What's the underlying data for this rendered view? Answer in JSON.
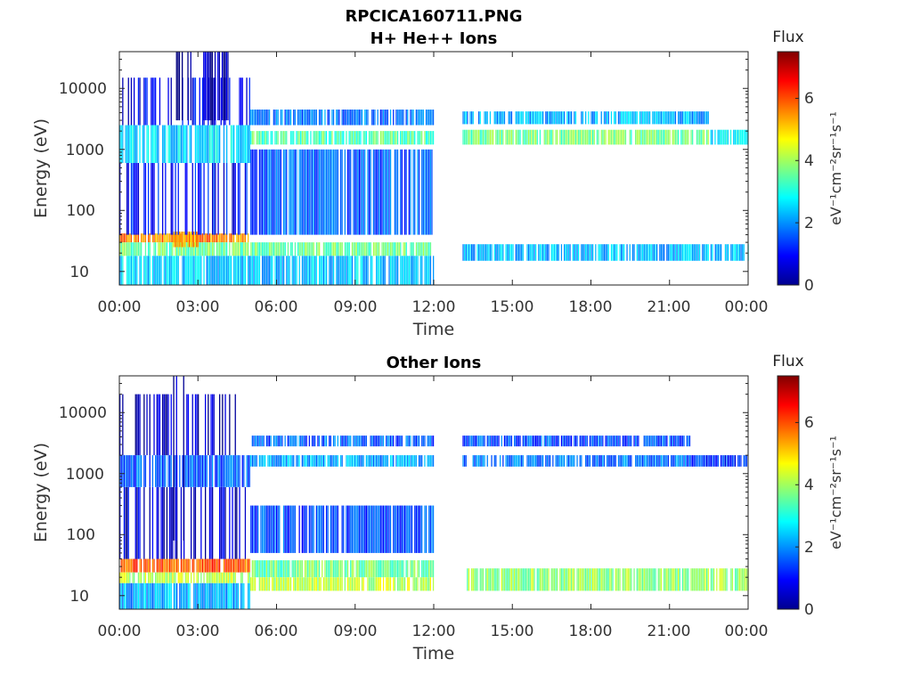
{
  "suptitle": "RPCICA160711.PNG",
  "panels": [
    {
      "title": "H+ He++ Ions",
      "xlabel": "Time",
      "ylabel": "Energy (eV)",
      "ytick_labels": [
        "10",
        "100",
        "1000",
        "10000"
      ],
      "xtick_labels": [
        "00:00",
        "03:00",
        "06:00",
        "09:00",
        "12:00",
        "15:00",
        "18:00",
        "21:00",
        "00:00"
      ],
      "colorbar": {
        "title": "Flux",
        "label": "eV⁻¹cm⁻²sr⁻¹s⁻¹",
        "tick_labels": [
          "0",
          "2",
          "4",
          "6"
        ]
      }
    },
    {
      "title": "Other Ions",
      "xlabel": "Time",
      "ylabel": "Energy (eV)",
      "ytick_labels": [
        "10",
        "100",
        "1000",
        "10000"
      ],
      "xtick_labels": [
        "00:00",
        "03:00",
        "06:00",
        "09:00",
        "12:00",
        "15:00",
        "18:00",
        "21:00",
        "00:00"
      ],
      "colorbar": {
        "title": "Flux",
        "label": "eV⁻¹cm⁻²sr⁻¹s⁻¹",
        "tick_labels": [
          "0",
          "2",
          "4",
          "6"
        ]
      }
    }
  ],
  "chart_data": [
    {
      "type": "heatmap",
      "title": "H+ He++ Ions",
      "xlabel": "Time",
      "ylabel": "Energy (eV)",
      "xlim_hours": [
        0,
        24
      ],
      "ylim_eV": [
        6,
        40000
      ],
      "yscale": "log",
      "colormap": "jet",
      "clim": [
        0,
        7.5
      ],
      "data_gap_hours": [
        12.0,
        13.1
      ],
      "bands": [
        {
          "t": [
            0,
            5.0
          ],
          "e": [
            30,
            42
          ],
          "flux": 5.6
        },
        {
          "t": [
            0,
            12.0
          ],
          "e": [
            18,
            30
          ],
          "flux": 3.6
        },
        {
          "t": [
            0,
            12.0
          ],
          "e": [
            6,
            18
          ],
          "flux": 2.4
        },
        {
          "t": [
            2.0,
            3.0
          ],
          "e": [
            25,
            45
          ],
          "flux": 5.3
        },
        {
          "t": [
            0,
            5.0
          ],
          "e": [
            40,
            600
          ],
          "flux": 1.0
        },
        {
          "t": [
            0,
            5.0
          ],
          "e": [
            600,
            2500
          ],
          "flux": 2.6
        },
        {
          "t": [
            0,
            5.0
          ],
          "e": [
            2500,
            15000
          ],
          "flux": 0.8
        },
        {
          "t": [
            2.0,
            2.8
          ],
          "e": [
            3000,
            40000
          ],
          "flux": 0.2
        },
        {
          "t": [
            3.2,
            4.2
          ],
          "e": [
            3000,
            40000
          ],
          "flux": 0.3
        },
        {
          "t": [
            5.0,
            12.0
          ],
          "e": [
            1200,
            2000
          ],
          "flux": 3.4
        },
        {
          "t": [
            5.0,
            12.0
          ],
          "e": [
            2500,
            4500
          ],
          "flux": 1.8
        },
        {
          "t": [
            5.0,
            12.0
          ],
          "e": [
            40,
            1000
          ],
          "flux": 1.6
        },
        {
          "t": [
            13.1,
            22.5
          ],
          "e": [
            1200,
            2100
          ],
          "flux": 3.6
        },
        {
          "t": [
            13.1,
            22.5
          ],
          "e": [
            2600,
            4200
          ],
          "flux": 2.2
        },
        {
          "t": [
            22.5,
            24.0
          ],
          "e": [
            1200,
            2100
          ],
          "flux": 2.6
        },
        {
          "t": [
            13.1,
            24.0
          ],
          "e": [
            15,
            28
          ],
          "flux": 2.3
        }
      ]
    },
    {
      "type": "heatmap",
      "title": "Other Ions",
      "xlabel": "Time",
      "ylabel": "Energy (eV)",
      "xlim_hours": [
        0,
        24
      ],
      "ylim_eV": [
        6,
        40000
      ],
      "yscale": "log",
      "colormap": "jet",
      "clim": [
        0,
        7.5
      ],
      "data_gap_hours": [
        12.0,
        13.1
      ],
      "bands": [
        {
          "t": [
            0,
            5.0
          ],
          "e": [
            24,
            40
          ],
          "flux": 5.9
        },
        {
          "t": [
            0,
            5.0
          ],
          "e": [
            16,
            24
          ],
          "flux": 4.2
        },
        {
          "t": [
            0,
            5.0
          ],
          "e": [
            6,
            16
          ],
          "flux": 2.2
        },
        {
          "t": [
            5.0,
            12.0
          ],
          "e": [
            20,
            38
          ],
          "flux": 3.6
        },
        {
          "t": [
            5.0,
            12.0
          ],
          "e": [
            12,
            20
          ],
          "flux": 4.2
        },
        {
          "t": [
            5.0,
            12.0
          ],
          "e": [
            50,
            300
          ],
          "flux": 1.5
        },
        {
          "t": [
            13.1,
            24.0
          ],
          "e": [
            12,
            28
          ],
          "flux": 3.9
        },
        {
          "t": [
            0,
            5.0
          ],
          "e": [
            600,
            2000
          ],
          "flux": 1.6
        },
        {
          "t": [
            0,
            5.0
          ],
          "e": [
            40,
            600
          ],
          "flux": 0.6
        },
        {
          "t": [
            0,
            5.0
          ],
          "e": [
            2000,
            20000
          ],
          "flux": 0.4
        },
        {
          "t": [
            2.0,
            3.0
          ],
          "e": [
            80,
            40000
          ],
          "flux": 0.3
        },
        {
          "t": [
            5.0,
            12.0
          ],
          "e": [
            1300,
            2000
          ],
          "flux": 2.2
        },
        {
          "t": [
            5.0,
            12.0
          ],
          "e": [
            2800,
            4200
          ],
          "flux": 1.6
        },
        {
          "t": [
            13.1,
            21.8
          ],
          "e": [
            1300,
            2000
          ],
          "flux": 1.8
        },
        {
          "t": [
            13.1,
            21.8
          ],
          "e": [
            2800,
            4200
          ],
          "flux": 1.5
        },
        {
          "t": [
            21.8,
            24.0
          ],
          "e": [
            1300,
            2000
          ],
          "flux": 1.2
        }
      ]
    }
  ]
}
